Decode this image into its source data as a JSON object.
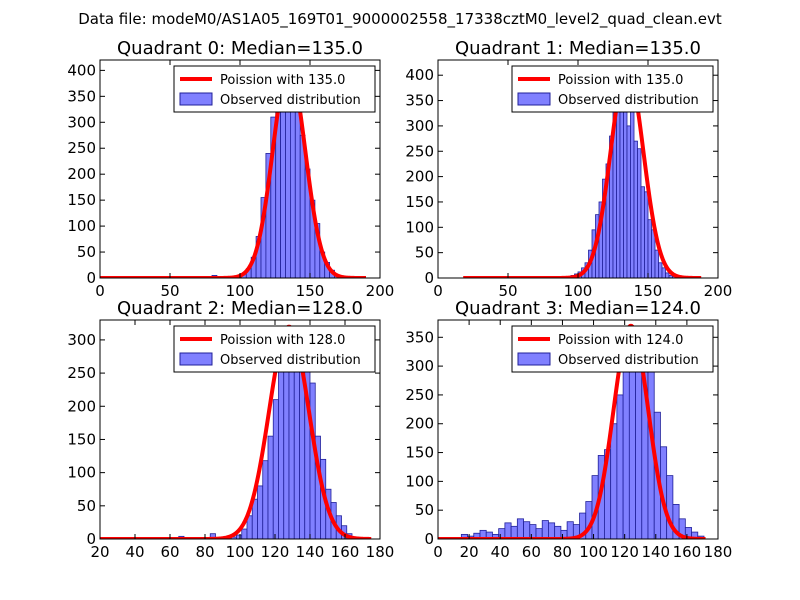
{
  "figure": {
    "suptitle": "Data file: modeM0/AS1A05_169T01_9000002558_17338cztM0_level2_quad_clean.evt"
  },
  "colors": {
    "bars": "#8080ff",
    "bar_edge": "#20209a",
    "poisson_line": "#ff0000",
    "axes": "#000000"
  },
  "chart_data": [
    {
      "type": "bar",
      "title": "Quadrant 0: Median=135.0",
      "median": 135.0,
      "xlim": [
        0,
        200
      ],
      "ylim": [
        0,
        420
      ],
      "xticks": [
        0,
        50,
        100,
        150,
        200
      ],
      "yticks": [
        0,
        50,
        100,
        150,
        200,
        250,
        300,
        350,
        400
      ],
      "legend": {
        "placement": "top-right",
        "line_label": "Poission with 135.0",
        "bar_label": "Observed distribution"
      },
      "bin_width": 3.5,
      "bin_edges": [
        80,
        83.5,
        87,
        90.5,
        94,
        97.5,
        101,
        104.5,
        108,
        111.5,
        115,
        118.5,
        122,
        125.5,
        129,
        132.5,
        136,
        139.5,
        143,
        146.5,
        150,
        153.5,
        157,
        160.5,
        164,
        167.5,
        171,
        174.5
      ],
      "counts": [
        5,
        3,
        0,
        0,
        2,
        3,
        8,
        18,
        40,
        80,
        155,
        240,
        310,
        345,
        390,
        380,
        370,
        355,
        275,
        210,
        150,
        105,
        50,
        30,
        15,
        6,
        3,
        1
      ],
      "poisson": {
        "mean": 135.0,
        "peak": 405,
        "x_range": [
          0,
          190
        ]
      }
    },
    {
      "type": "bar",
      "title": "Quadrant 1: Median=135.0",
      "median": 135.0,
      "xlim": [
        0,
        200
      ],
      "ylim": [
        0,
        430
      ],
      "xticks": [
        0,
        50,
        100,
        150,
        200
      ],
      "yticks": [
        0,
        50,
        100,
        150,
        200,
        250,
        300,
        350,
        400
      ],
      "legend": {
        "placement": "top-right",
        "line_label": "Poission with 135.0",
        "bar_label": "Observed distribution"
      },
      "bin_width": 2.5,
      "bin_edges": [
        90,
        92.5,
        95,
        97.5,
        100,
        102.5,
        105,
        107.5,
        110,
        112.5,
        115,
        117.5,
        120,
        122.5,
        125,
        127.5,
        130,
        132.5,
        135,
        137.5,
        140,
        142.5,
        145,
        147.5,
        150,
        152.5,
        155,
        157.5,
        160,
        162.5,
        165,
        167.5,
        170
      ],
      "counts": [
        3,
        3,
        5,
        8,
        12,
        20,
        30,
        55,
        95,
        125,
        150,
        195,
        225,
        280,
        330,
        360,
        395,
        380,
        300,
        355,
        270,
        255,
        180,
        170,
        115,
        95,
        55,
        30,
        20,
        10,
        5,
        3,
        1
      ],
      "poisson": {
        "mean": 135.0,
        "peak": 415,
        "x_range": [
          18,
          188
        ]
      }
    },
    {
      "type": "bar",
      "title": "Quadrant 2: Median=128.0",
      "median": 128.0,
      "xlim": [
        20,
        180
      ],
      "ylim": [
        0,
        330
      ],
      "xticks": [
        20,
        40,
        60,
        80,
        100,
        120,
        140,
        160,
        180
      ],
      "yticks": [
        0,
        50,
        100,
        150,
        200,
        250,
        300
      ],
      "legend": {
        "placement": "top-right",
        "line_label": "Poission with 128.0",
        "bar_label": "Observed distribution"
      },
      "bin_width": 3.0,
      "bin_edges": [
        65,
        68,
        71,
        74,
        77,
        80,
        83,
        86,
        89,
        92,
        95,
        98,
        101,
        104,
        107,
        110,
        113,
        116,
        119,
        122,
        125,
        128,
        131,
        134,
        137,
        140,
        143,
        146,
        149,
        152,
        155,
        158,
        161,
        164
      ],
      "counts": [
        4,
        2,
        0,
        0,
        0,
        0,
        8,
        0,
        0,
        2,
        3,
        6,
        15,
        35,
        60,
        80,
        118,
        155,
        210,
        260,
        295,
        300,
        285,
        300,
        305,
        235,
        155,
        120,
        75,
        55,
        35,
        20,
        8,
        3
      ],
      "poisson": {
        "mean": 128.0,
        "peak": 320,
        "x_range": [
          20,
          175
        ]
      }
    },
    {
      "type": "bar",
      "title": "Quadrant 3: Median=124.0",
      "median": 124.0,
      "xlim": [
        0,
        180
      ],
      "ylim": [
        0,
        380
      ],
      "xticks": [
        0,
        20,
        40,
        60,
        80,
        100,
        120,
        140,
        160,
        180
      ],
      "yticks": [
        0,
        50,
        100,
        150,
        200,
        250,
        300,
        350
      ],
      "legend": {
        "placement": "top-right",
        "line_label": "Poission with 124.0",
        "bar_label": "Observed distribution"
      },
      "bin_width": 4.0,
      "bin_edges": [
        15,
        19,
        23,
        27,
        31,
        35,
        39,
        43,
        47,
        51,
        55,
        59,
        63,
        67,
        71,
        75,
        79,
        83,
        87,
        91,
        95,
        99,
        103,
        107,
        111,
        115,
        119,
        123,
        127,
        131,
        135,
        139,
        143,
        147,
        151,
        155,
        159,
        163,
        167
      ],
      "counts": [
        8,
        5,
        10,
        15,
        12,
        8,
        18,
        28,
        22,
        35,
        30,
        25,
        18,
        32,
        28,
        22,
        15,
        30,
        25,
        45,
        65,
        110,
        145,
        155,
        200,
        250,
        330,
        310,
        290,
        320,
        300,
        220,
        160,
        110,
        60,
        35,
        20,
        12,
        5
      ],
      "poisson": {
        "mean": 124.0,
        "peak": 370,
        "x_range": [
          0,
          172
        ]
      }
    }
  ]
}
